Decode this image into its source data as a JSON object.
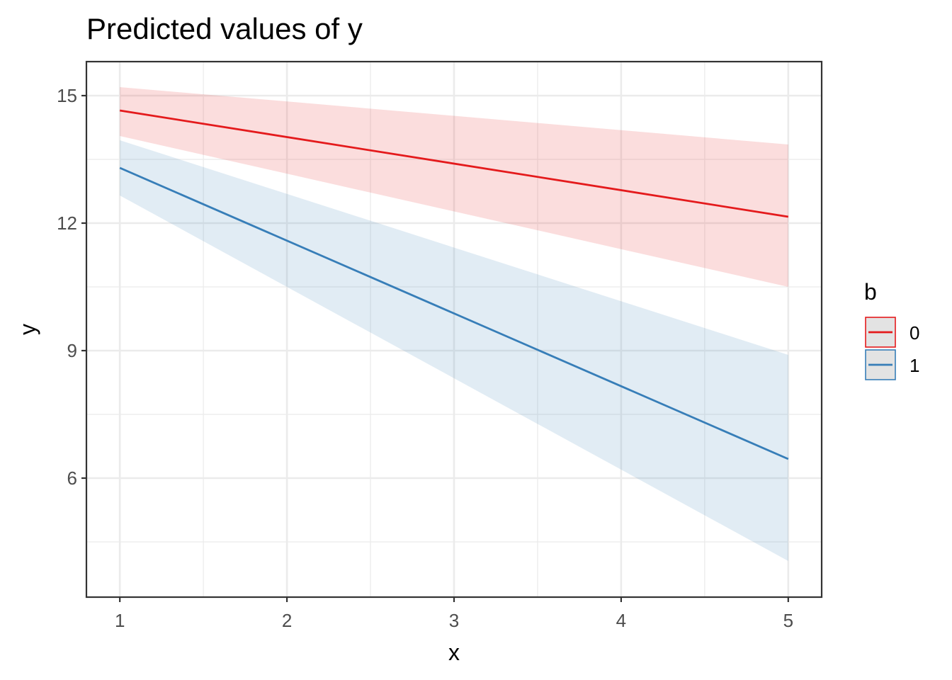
{
  "chart_data": {
    "type": "line",
    "title": "Predicted values of y",
    "xlabel": "x",
    "ylabel": "y",
    "xlim": [
      0.8,
      5.2
    ],
    "ylim": [
      3.2,
      15.8
    ],
    "x_ticks": [
      1,
      2,
      3,
      4,
      5
    ],
    "x_tick_labels": [
      "1",
      "2",
      "3",
      "4",
      "5"
    ],
    "y_ticks": [
      6,
      9,
      12,
      15
    ],
    "y_tick_labels": [
      "6",
      "9",
      "12",
      "15"
    ],
    "x_minor_ticks": [
      1.5,
      2.5,
      3.5,
      4.5
    ],
    "y_minor_ticks": [
      4.5,
      7.5,
      10.5,
      13.5
    ],
    "grid": true,
    "legend": {
      "title": "b",
      "position": "right"
    },
    "series": [
      {
        "name": "0",
        "color": "#e41a1c",
        "x": [
          1,
          5
        ],
        "y": [
          14.65,
          12.15
        ],
        "lower": [
          14.05,
          10.5
        ],
        "upper": [
          15.2,
          13.85
        ]
      },
      {
        "name": "1",
        "color": "#377eb8",
        "x": [
          1,
          5
        ],
        "y": [
          13.3,
          6.45
        ],
        "lower": [
          12.65,
          4.05
        ],
        "upper": [
          13.95,
          8.9
        ]
      }
    ]
  }
}
